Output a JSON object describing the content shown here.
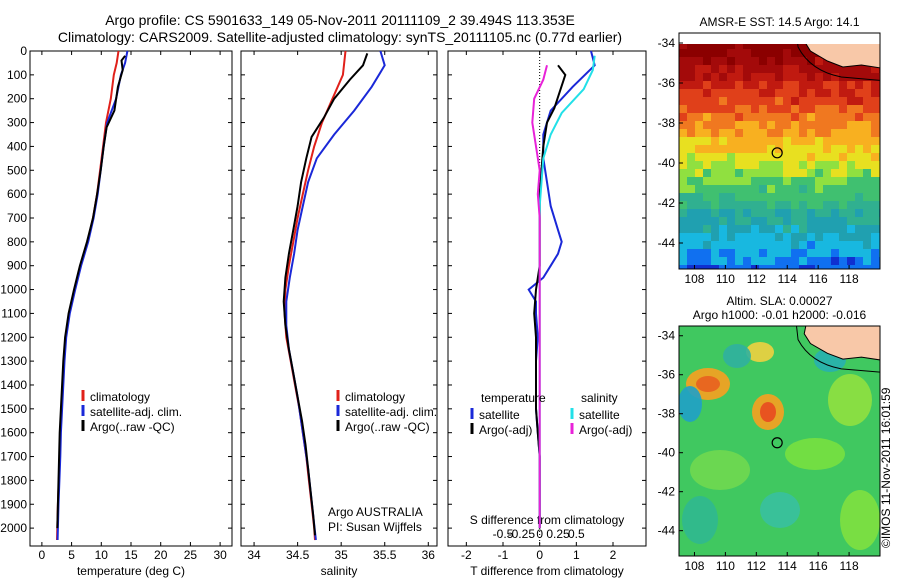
{
  "header": {
    "line1": "Argo profile: CS 5901633_149 05-Nov-2011 20111109_2 39.494S 113.353E",
    "line2": "Climatology: CARS2009. Satellite-adjusted climatology: synTS_20111105.nc (0.77d earlier)"
  },
  "credit": "©IMOS 11-Nov-2011 16:01:59",
  "colors": {
    "climatology": "#e0201a",
    "satellite": "#1a28d8",
    "argo": "#000000",
    "sat_salinity": "#22e0e8",
    "argo_salinity": "#e822d8"
  },
  "depth_ticks": [
    0,
    100,
    200,
    300,
    400,
    500,
    600,
    700,
    800,
    900,
    1000,
    1100,
    1200,
    1300,
    1400,
    1500,
    1600,
    1700,
    1800,
    1900,
    2000
  ],
  "chart_data": [
    {
      "type": "line",
      "id": "temperature",
      "xlabel": "temperature (deg C)",
      "xlim": [
        -2,
        32
      ],
      "ylim": [
        2075,
        0
      ],
      "x_ticks": [
        0,
        5,
        10,
        15,
        20,
        25,
        30
      ],
      "x_tick_labels": [
        "0",
        "5",
        "10",
        "15",
        "20",
        "25",
        "30"
      ],
      "legend": [
        "climatology",
        "satellite-adj. clim.",
        "Argo(..raw -QC)"
      ],
      "series": [
        {
          "name": "climatology",
          "color": "#e0201a",
          "points": [
            [
              12.9,
              0
            ],
            [
              12.6,
              50
            ],
            [
              12.1,
              100
            ],
            [
              11.6,
              200
            ],
            [
              10.8,
              300
            ],
            [
              10.3,
              400
            ],
            [
              9.8,
              500
            ],
            [
              9.3,
              600
            ],
            [
              8.6,
              700
            ],
            [
              7.7,
              800
            ],
            [
              6.5,
              900
            ],
            [
              5.5,
              1000
            ],
            [
              4.6,
              1100
            ],
            [
              4.0,
              1200
            ],
            [
              3.7,
              1300
            ],
            [
              3.5,
              1400
            ],
            [
              3.3,
              1500
            ],
            [
              3.1,
              1600
            ],
            [
              3.0,
              1700
            ],
            [
              2.85,
              1800
            ],
            [
              2.7,
              1900
            ],
            [
              2.6,
              2000
            ],
            [
              2.55,
              2050
            ]
          ]
        },
        {
          "name": "satellite-adj. clim.",
          "color": "#1a28d8",
          "points": [
            [
              14.4,
              0
            ],
            [
              14.0,
              50
            ],
            [
              13.3,
              100
            ],
            [
              12.5,
              200
            ],
            [
              11.0,
              300
            ],
            [
              10.4,
              400
            ],
            [
              9.9,
              500
            ],
            [
              9.4,
              600
            ],
            [
              8.7,
              700
            ],
            [
              7.8,
              800
            ],
            [
              6.6,
              900
            ],
            [
              5.6,
              1000
            ],
            [
              4.7,
              1100
            ],
            [
              4.1,
              1200
            ],
            [
              3.8,
              1300
            ],
            [
              3.6,
              1400
            ],
            [
              3.4,
              1500
            ],
            [
              3.2,
              1600
            ],
            [
              3.1,
              1700
            ],
            [
              2.95,
              1800
            ],
            [
              2.8,
              1900
            ],
            [
              2.7,
              2000
            ],
            [
              2.65,
              2050
            ]
          ]
        },
        {
          "name": "Argo(..raw -QC)",
          "color": "#000000",
          "points": [
            [
              14.0,
              20
            ],
            [
              13.4,
              40
            ],
            [
              13.6,
              80
            ],
            [
              12.8,
              150
            ],
            [
              12.2,
              250
            ],
            [
              10.9,
              320
            ],
            [
              10.4,
              400
            ],
            [
              9.9,
              500
            ],
            [
              9.3,
              600
            ],
            [
              8.6,
              700
            ],
            [
              7.6,
              800
            ],
            [
              6.4,
              900
            ],
            [
              5.4,
              1000
            ],
            [
              4.5,
              1100
            ],
            [
              3.9,
              1200
            ],
            [
              3.6,
              1300
            ],
            [
              3.4,
              1400
            ],
            [
              3.2,
              1500
            ],
            [
              3.0,
              1600
            ],
            [
              2.9,
              1700
            ],
            [
              2.8,
              1800
            ],
            [
              2.7,
              1900
            ],
            [
              2.6,
              2000
            ]
          ]
        }
      ]
    },
    {
      "type": "line",
      "id": "salinity",
      "xlabel": "salinity",
      "xlim": [
        33.85,
        36.1
      ],
      "ylim": [
        2075,
        0
      ],
      "x_ticks": [
        34,
        34.5,
        35,
        35.5,
        36
      ],
      "x_tick_labels": [
        "34",
        "34.5",
        "35",
        "35.5",
        "36"
      ],
      "legend": [
        "climatology",
        "satellite-adj. clim.",
        "Argo(..raw -QC)"
      ],
      "annotation": [
        "Argo AUSTRALIA",
        "PI: Susan Wijffels"
      ],
      "series": [
        {
          "name": "climatology",
          "color": "#e0201a",
          "points": [
            [
              35.05,
              0
            ],
            [
              35.02,
              100
            ],
            [
              34.9,
              200
            ],
            [
              34.78,
              300
            ],
            [
              34.69,
              400
            ],
            [
              34.62,
              500
            ],
            [
              34.56,
              600
            ],
            [
              34.5,
              700
            ],
            [
              34.45,
              800
            ],
            [
              34.4,
              900
            ],
            [
              34.36,
              1000
            ],
            [
              34.35,
              1100
            ],
            [
              34.37,
              1200
            ],
            [
              34.42,
              1300
            ],
            [
              34.47,
              1400
            ],
            [
              34.52,
              1500
            ],
            [
              34.56,
              1600
            ],
            [
              34.6,
              1700
            ],
            [
              34.63,
              1800
            ],
            [
              34.66,
              1900
            ],
            [
              34.69,
              2000
            ],
            [
              34.7,
              2050
            ]
          ]
        },
        {
          "name": "satellite-adj. clim.",
          "color": "#1a28d8",
          "points": [
            [
              35.45,
              0
            ],
            [
              35.5,
              60
            ],
            [
              35.35,
              150
            ],
            [
              35.15,
              250
            ],
            [
              34.92,
              350
            ],
            [
              34.72,
              450
            ],
            [
              34.62,
              550
            ],
            [
              34.56,
              650
            ],
            [
              34.5,
              750
            ],
            [
              34.46,
              850
            ],
            [
              34.41,
              950
            ],
            [
              34.37,
              1050
            ],
            [
              34.37,
              1150
            ],
            [
              34.4,
              1250
            ],
            [
              34.45,
              1350
            ],
            [
              34.5,
              1450
            ],
            [
              34.54,
              1550
            ],
            [
              34.58,
              1650
            ],
            [
              34.62,
              1750
            ],
            [
              34.65,
              1850
            ],
            [
              34.68,
              1950
            ],
            [
              34.71,
              2050
            ]
          ]
        },
        {
          "name": "Argo(..raw -QC)",
          "color": "#000000",
          "points": [
            [
              35.3,
              10
            ],
            [
              35.25,
              60
            ],
            [
              35.1,
              120
            ],
            [
              34.92,
              200
            ],
            [
              34.8,
              280
            ],
            [
              34.66,
              360
            ],
            [
              34.6,
              450
            ],
            [
              34.54,
              550
            ],
            [
              34.5,
              650
            ],
            [
              34.45,
              750
            ],
            [
              34.4,
              850
            ],
            [
              34.36,
              950
            ],
            [
              34.34,
              1050
            ],
            [
              34.36,
              1150
            ],
            [
              34.4,
              1250
            ],
            [
              34.45,
              1350
            ],
            [
              34.5,
              1450
            ],
            [
              34.55,
              1550
            ],
            [
              34.59,
              1650
            ],
            [
              34.62,
              1750
            ],
            [
              34.65,
              1850
            ],
            [
              34.68,
              1950
            ],
            [
              34.7,
              2030
            ]
          ]
        }
      ]
    },
    {
      "type": "line",
      "id": "difference",
      "xlabel": "T difference from climatology",
      "xlabel2": "S difference from climatology",
      "xlim": [
        -2.5,
        2.9
      ],
      "ylim": [
        2075,
        0
      ],
      "x_ticks": [
        -2,
        -1,
        0,
        1,
        2
      ],
      "x_tick_labels": [
        "-2",
        "-1",
        "0",
        "1",
        "2"
      ],
      "x2_ticks": [
        -1.0,
        -0.5,
        0.0,
        0.5,
        1.0
      ],
      "x2_tick_labels": [
        "-0.5",
        "-0.25",
        "0",
        "0.25",
        "0.5"
      ],
      "legend_headers": [
        "temperature",
        "salinity"
      ],
      "legend": [
        "satellite",
        "Argo(-adj)",
        "satellite",
        "Argo(-adj)"
      ],
      "series": [
        {
          "name": "satellite",
          "color": "#1a28d8",
          "points": [
            [
              1.4,
              0
            ],
            [
              1.5,
              60
            ],
            [
              0.9,
              150
            ],
            [
              0.3,
              250
            ],
            [
              0.1,
              350
            ],
            [
              0.1,
              450
            ],
            [
              0.2,
              550
            ],
            [
              0.3,
              650
            ],
            [
              0.5,
              750
            ],
            [
              0.6,
              800
            ],
            [
              0.5,
              850
            ],
            [
              0.3,
              900
            ],
            [
              0.1,
              950
            ],
            [
              -0.3,
              1000
            ],
            [
              -0.1,
              1050
            ],
            [
              -0.1,
              1100
            ],
            [
              -0.05,
              1200
            ],
            [
              -0.1,
              1300
            ],
            [
              -0.1,
              1400
            ],
            [
              -0.1,
              1500
            ],
            [
              -0.05,
              1600
            ],
            [
              0,
              1700
            ],
            [
              0,
              1800
            ],
            [
              0,
              1900
            ],
            [
              0,
              2000
            ]
          ]
        },
        {
          "name": "Argo(-adj)",
          "color": "#000000",
          "points": [
            [
              0.5,
              60
            ],
            [
              0.7,
              100
            ],
            [
              0.55,
              170
            ],
            [
              0.4,
              240
            ],
            [
              0.2,
              300
            ],
            [
              0.1,
              400
            ],
            [
              0.05,
              500
            ],
            [
              0,
              600
            ],
            [
              0,
              700
            ],
            [
              0,
              800
            ],
            [
              0,
              900
            ],
            [
              -0.1,
              1000
            ],
            [
              -0.15,
              1100
            ],
            [
              -0.1,
              1200
            ],
            [
              -0.1,
              1300
            ],
            [
              -0.1,
              1400
            ],
            [
              -0.1,
              1500
            ],
            [
              -0.05,
              1600
            ],
            [
              0,
              1700
            ],
            [
              0,
              1800
            ],
            [
              0,
              1900
            ],
            [
              0,
              2000
            ]
          ]
        },
        {
          "name": "satellite",
          "color": "#22e0e8",
          "points": [
            [
              1.5,
              20
            ],
            [
              1.45,
              80
            ],
            [
              1.2,
              160
            ],
            [
              0.6,
              260
            ],
            [
              0.3,
              350
            ],
            [
              0.1,
              450
            ],
            [
              0.05,
              550
            ],
            [
              0,
              650
            ],
            [
              0,
              750
            ],
            [
              0,
              850
            ],
            [
              0,
              950
            ],
            [
              0,
              1050
            ],
            [
              0,
              1150
            ],
            [
              0,
              1250
            ],
            [
              0,
              1350
            ],
            [
              0,
              1450
            ],
            [
              0,
              1550
            ],
            [
              0,
              1650
            ],
            [
              0,
              1750
            ],
            [
              0,
              1850
            ],
            [
              0,
              1950
            ],
            [
              0,
              2000
            ]
          ]
        },
        {
          "name": "Argo(-adj)",
          "color": "#e822d8",
          "points": [
            [
              0.2,
              60
            ],
            [
              0.1,
              120
            ],
            [
              -0.15,
              200
            ],
            [
              -0.2,
              300
            ],
            [
              -0.1,
              400
            ],
            [
              0,
              500
            ],
            [
              -0.05,
              600
            ],
            [
              0,
              700
            ],
            [
              0,
              800
            ],
            [
              0,
              900
            ],
            [
              0,
              1000
            ],
            [
              0,
              1100
            ],
            [
              0,
              1200
            ],
            [
              0,
              1300
            ],
            [
              0,
              1400
            ],
            [
              0,
              1500
            ],
            [
              0,
              1600
            ],
            [
              0,
              1700
            ],
            [
              0,
              1800
            ],
            [
              0,
              1900
            ],
            [
              0,
              2000
            ]
          ]
        }
      ]
    },
    {
      "type": "heatmap",
      "id": "sst_map",
      "title": "AMSR-E SST: 14.5  Argo: 14.1",
      "xlim": [
        107,
        120
      ],
      "ylim": [
        -45.3,
        -33.5
      ],
      "x_ticks": [
        108,
        110,
        112,
        114,
        116,
        118
      ],
      "y_ticks": [
        -34,
        -36,
        -38,
        -40,
        -42,
        -44
      ],
      "argo_position": [
        113.35,
        -39.49
      ]
    },
    {
      "type": "heatmap",
      "id": "sla_map",
      "title": "Altim. SLA: 0.00027",
      "subtitle": "Argo h1000: -0.01 h2000: -0.016",
      "xlim": [
        107,
        120
      ],
      "ylim": [
        -45.3,
        -33.5
      ],
      "x_ticks": [
        108,
        110,
        112,
        114,
        116,
        118
      ],
      "y_ticks": [
        -34,
        -36,
        -38,
        -40,
        -42,
        -44
      ],
      "argo_position": [
        113.35,
        -39.49
      ]
    }
  ]
}
